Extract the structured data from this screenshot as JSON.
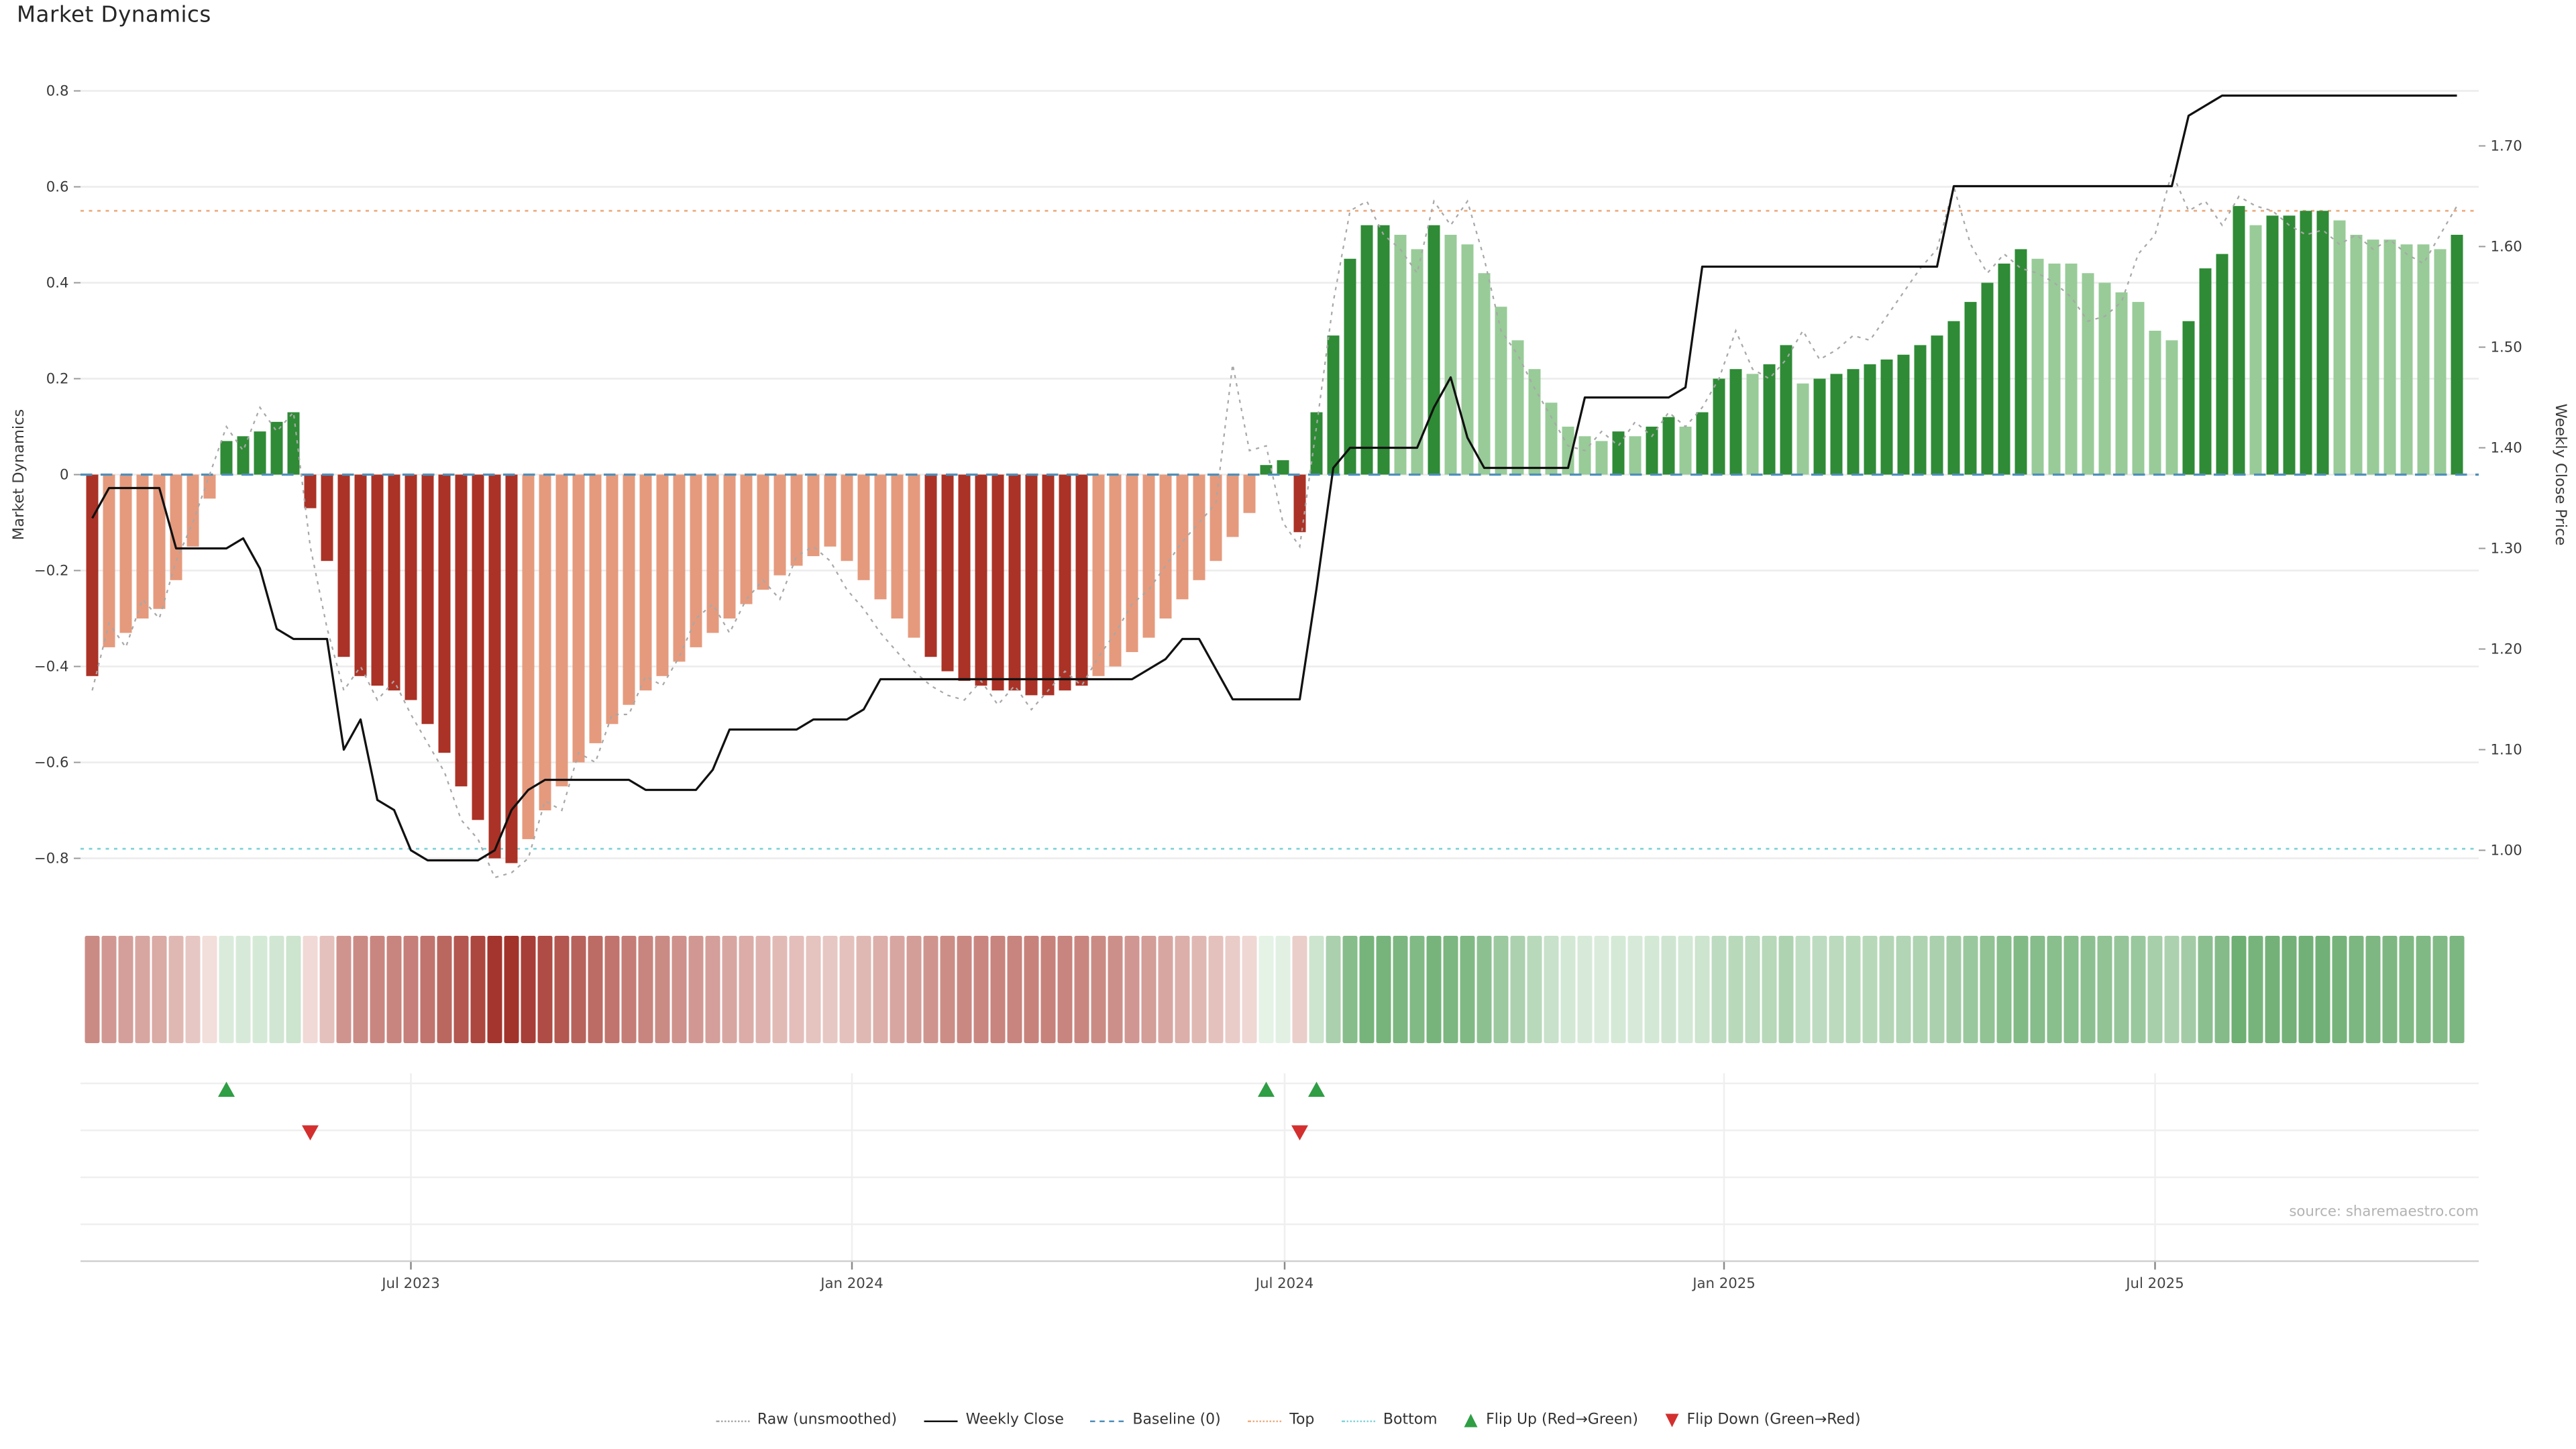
{
  "page": {
    "title": "Market Dynamics"
  },
  "axes": {
    "left_label": "Market Dynamics",
    "right_label": "Weekly Close Price",
    "x_tick_labels": [
      "Jul 2023",
      "Jan 2024",
      "Jul 2024",
      "Jan 2025",
      "Jul 2025"
    ]
  },
  "source_text": "source: sharemaestro.com",
  "colors": {
    "bar_dark_red": "#ab3226",
    "bar_light_red": "#e59a7d",
    "bar_dark_green": "#2f8b36",
    "bar_light_green": "#98cb98",
    "weekly_close_line": "#111111",
    "raw_line": "#a8a8a8",
    "baseline": "#4f8fba",
    "top_line": "#ecad82",
    "bottom_line": "#7fd4da",
    "flip_up_marker": "#2f9e44",
    "flip_down_marker": "#d32f2f",
    "grid": "#ececec",
    "heat_pos_lo": "#e9f4ea",
    "heat_pos_hi": "#2f8b36",
    "heat_neg_lo": "#f7e9e6",
    "heat_neg_hi": "#9e2a22"
  },
  "legend": {
    "items": [
      {
        "type": "line",
        "style": "dotted",
        "color": "#a8a8a8",
        "label": "Raw (unsmoothed)"
      },
      {
        "type": "line",
        "style": "solid",
        "color": "#111111",
        "label": "Weekly Close"
      },
      {
        "type": "line",
        "style": "dashed",
        "color": "#4f8fba",
        "label": "Baseline (0)"
      },
      {
        "type": "line",
        "style": "dotted",
        "color": "#ecad82",
        "label": "Top"
      },
      {
        "type": "line",
        "style": "dotted",
        "color": "#7fd4da",
        "label": "Bottom"
      },
      {
        "type": "marker-up",
        "color": "#2f9e44",
        "label": "Flip Up (Red→Green)"
      },
      {
        "type": "marker-down",
        "color": "#d32f2f",
        "label": "Flip Down (Green→Red)"
      }
    ]
  },
  "chart_data": {
    "type": "bar",
    "title": "Market Dynamics",
    "ylabel_left": "Market Dynamics",
    "ylabel_right": "Weekly Close Price",
    "baseline": 0,
    "top_threshold": 0.55,
    "bottom_threshold": -0.78,
    "y_left": {
      "min": -0.8,
      "max": 0.8,
      "ticks": [
        {
          "v": 0.8,
          "label": "0.8"
        },
        {
          "v": 0.6,
          "label": "0.6"
        },
        {
          "v": 0.4,
          "label": "0.4"
        },
        {
          "v": 0.2,
          "label": "0.2"
        },
        {
          "v": 0.0,
          "label": "0"
        },
        {
          "v": -0.2,
          "label": "−0.2"
        },
        {
          "v": -0.4,
          "label": "−0.4"
        },
        {
          "v": -0.6,
          "label": "−0.6"
        },
        {
          "v": -0.8,
          "label": "−0.8"
        }
      ]
    },
    "y_right": {
      "min": 1.0,
      "max": 1.75,
      "ticks": [
        {
          "v": 1.7,
          "label": "1.70"
        },
        {
          "v": 1.6,
          "label": "1.60"
        },
        {
          "v": 1.5,
          "label": "1.50"
        },
        {
          "v": 1.4,
          "label": "1.40"
        },
        {
          "v": 1.3,
          "label": "1.30"
        },
        {
          "v": 1.2,
          "label": "1.20"
        },
        {
          "v": 1.1,
          "label": "1.10"
        },
        {
          "v": 1.0,
          "label": "1.00"
        }
      ]
    },
    "x_ticks": [
      {
        "i": 19.0,
        "label": "Jul 2023"
      },
      {
        "i": 45.3,
        "label": "Jan 2024"
      },
      {
        "i": 71.1,
        "label": "Jul 2024"
      },
      {
        "i": 97.3,
        "label": "Jan 2025"
      },
      {
        "i": 123.0,
        "label": "Jul 2025"
      }
    ],
    "flip_up_indices": [
      8,
      70,
      73
    ],
    "flip_down_indices": [
      13,
      72
    ],
    "series": {
      "dynamics": [
        -0.42,
        -0.36,
        -0.33,
        -0.3,
        -0.28,
        -0.22,
        -0.15,
        -0.05,
        0.07,
        0.08,
        0.09,
        0.11,
        0.13,
        -0.07,
        -0.18,
        -0.38,
        -0.42,
        -0.44,
        -0.45,
        -0.47,
        -0.52,
        -0.58,
        -0.65,
        -0.72,
        -0.8,
        -0.81,
        -0.76,
        -0.7,
        -0.65,
        -0.6,
        -0.56,
        -0.52,
        -0.48,
        -0.45,
        -0.42,
        -0.39,
        -0.36,
        -0.33,
        -0.3,
        -0.27,
        -0.24,
        -0.21,
        -0.19,
        -0.17,
        -0.15,
        -0.18,
        -0.22,
        -0.26,
        -0.3,
        -0.34,
        -0.38,
        -0.41,
        -0.43,
        -0.44,
        -0.45,
        -0.45,
        -0.46,
        -0.46,
        -0.45,
        -0.44,
        -0.42,
        -0.4,
        -0.37,
        -0.34,
        -0.3,
        -0.26,
        -0.22,
        -0.18,
        -0.13,
        -0.08,
        0.02,
        0.03,
        -0.12,
        0.13,
        0.29,
        0.45,
        0.52,
        0.52,
        0.5,
        0.47,
        0.52,
        0.5,
        0.48,
        0.42,
        0.35,
        0.28,
        0.22,
        0.15,
        0.1,
        0.08,
        0.07,
        0.09,
        0.08,
        0.1,
        0.12,
        0.1,
        0.13,
        0.2,
        0.22,
        0.21,
        0.23,
        0.27,
        0.19,
        0.2,
        0.21,
        0.22,
        0.23,
        0.24,
        0.25,
        0.27,
        0.29,
        0.32,
        0.36,
        0.4,
        0.44,
        0.47,
        0.45,
        0.44,
        0.44,
        0.42,
        0.4,
        0.38,
        0.36,
        0.3,
        0.28,
        0.32,
        0.43,
        0.46,
        0.56,
        0.52,
        0.54,
        0.54,
        0.55,
        0.55,
        0.53,
        0.5,
        0.49,
        0.49,
        0.48,
        0.48,
        0.47,
        0.5
      ],
      "raw": [
        -0.45,
        -0.31,
        -0.36,
        -0.26,
        -0.3,
        -0.18,
        -0.1,
        0.0,
        0.1,
        0.05,
        0.14,
        0.09,
        0.13,
        -0.15,
        -0.32,
        -0.45,
        -0.4,
        -0.47,
        -0.43,
        -0.5,
        -0.56,
        -0.62,
        -0.72,
        -0.76,
        -0.84,
        -0.83,
        -0.8,
        -0.68,
        -0.7,
        -0.58,
        -0.6,
        -0.5,
        -0.5,
        -0.42,
        -0.44,
        -0.38,
        -0.3,
        -0.27,
        -0.33,
        -0.26,
        -0.22,
        -0.26,
        -0.17,
        -0.15,
        -0.18,
        -0.24,
        -0.28,
        -0.33,
        -0.37,
        -0.41,
        -0.44,
        -0.46,
        -0.47,
        -0.43,
        -0.48,
        -0.44,
        -0.49,
        -0.45,
        -0.41,
        -0.44,
        -0.38,
        -0.33,
        -0.27,
        -0.24,
        -0.19,
        -0.14,
        -0.1,
        -0.06,
        0.23,
        0.05,
        0.06,
        -0.1,
        -0.15,
        0.1,
        0.36,
        0.55,
        0.57,
        0.5,
        0.47,
        0.42,
        0.57,
        0.52,
        0.57,
        0.45,
        0.3,
        0.25,
        0.18,
        0.12,
        0.06,
        0.05,
        0.09,
        0.06,
        0.11,
        0.08,
        0.13,
        0.1,
        0.14,
        0.2,
        0.3,
        0.22,
        0.2,
        0.24,
        0.3,
        0.24,
        0.26,
        0.29,
        0.28,
        0.33,
        0.38,
        0.43,
        0.47,
        0.6,
        0.48,
        0.42,
        0.46,
        0.43,
        0.42,
        0.4,
        0.37,
        0.32,
        0.33,
        0.36,
        0.46,
        0.5,
        0.63,
        0.55,
        0.57,
        0.52,
        0.58,
        0.56,
        0.55,
        0.52,
        0.5,
        0.51,
        0.48,
        0.5,
        0.47,
        0.49,
        0.46,
        0.44,
        0.5,
        0.56
      ],
      "weekly_close": [
        1.33,
        1.36,
        1.36,
        1.36,
        1.36,
        1.3,
        1.3,
        1.3,
        1.3,
        1.31,
        1.28,
        1.22,
        1.21,
        1.21,
        1.21,
        1.1,
        1.13,
        1.05,
        1.04,
        1.0,
        0.99,
        0.99,
        0.99,
        0.99,
        1.0,
        1.04,
        1.06,
        1.07,
        1.07,
        1.07,
        1.07,
        1.07,
        1.07,
        1.06,
        1.06,
        1.06,
        1.06,
        1.08,
        1.12,
        1.12,
        1.12,
        1.12,
        1.12,
        1.13,
        1.13,
        1.13,
        1.14,
        1.17,
        1.17,
        1.17,
        1.17,
        1.17,
        1.17,
        1.17,
        1.17,
        1.17,
        1.17,
        1.17,
        1.17,
        1.17,
        1.17,
        1.17,
        1.17,
        1.18,
        1.19,
        1.21,
        1.21,
        1.18,
        1.15,
        1.15,
        1.15,
        1.15,
        1.15,
        1.26,
        1.38,
        1.4,
        1.4,
        1.4,
        1.4,
        1.4,
        1.44,
        1.47,
        1.41,
        1.38,
        1.38,
        1.38,
        1.38,
        1.38,
        1.38,
        1.45,
        1.45,
        1.45,
        1.45,
        1.45,
        1.45,
        1.46,
        1.58,
        1.58,
        1.58,
        1.58,
        1.58,
        1.58,
        1.58,
        1.58,
        1.58,
        1.58,
        1.58,
        1.58,
        1.58,
        1.58,
        1.58,
        1.66,
        1.66,
        1.66,
        1.66,
        1.66,
        1.66,
        1.66,
        1.66,
        1.66,
        1.66,
        1.66,
        1.66,
        1.66,
        1.66,
        1.73,
        1.74,
        1.75,
        1.75,
        1.75,
        1.75,
        1.75,
        1.75,
        1.75,
        1.75,
        1.75,
        1.75,
        1.75,
        1.75,
        1.75,
        1.75,
        1.75
      ],
      "shade_runs": "1d 7l 18d 24l 10d 10l 8d 2l 1d 10l 1d 1l 2d 1l 3d 1l 2d 1l 13d 9l 4d 1l 4d 7l 1d"
    }
  }
}
